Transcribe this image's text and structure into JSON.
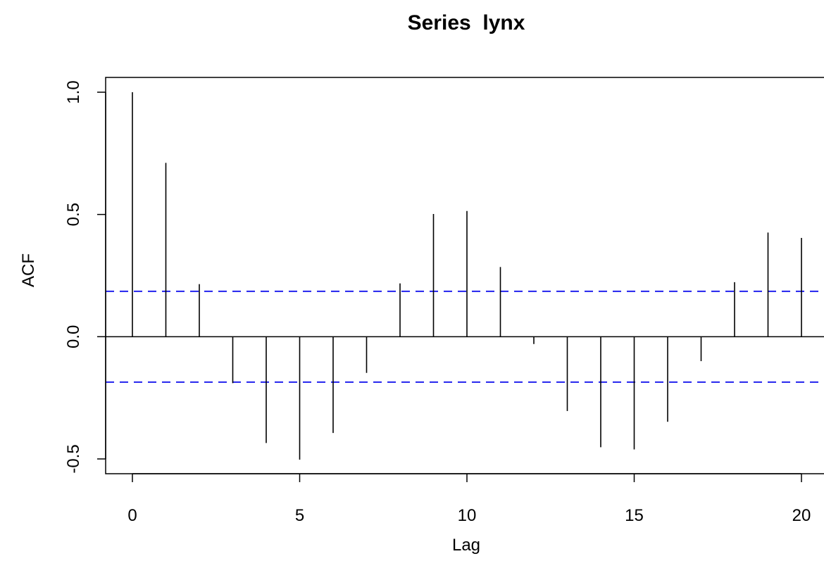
{
  "chart_data": {
    "type": "bar",
    "title": "Series  lynx",
    "xlabel": "Lag",
    "ylabel": "ACF",
    "xlim": [
      -0.8,
      20.8
    ],
    "ylim": [
      -0.5,
      1.0
    ],
    "x_ticks": [
      0,
      5,
      10,
      15,
      20
    ],
    "x_tick_labels": [
      "0",
      "5",
      "10",
      "15",
      "20"
    ],
    "y_ticks": [
      -0.5,
      0.0,
      0.5,
      1.0
    ],
    "y_tick_labels": [
      "-0.5",
      "0.0",
      "0.5",
      "1.0"
    ],
    "lags": [
      0,
      1,
      2,
      3,
      4,
      5,
      6,
      7,
      8,
      9,
      10,
      11,
      12,
      13,
      14,
      15,
      16,
      17,
      18,
      19,
      20
    ],
    "acf": [
      1.0,
      0.711,
      0.215,
      -0.19,
      -0.435,
      -0.503,
      -0.394,
      -0.148,
      0.218,
      0.502,
      0.514,
      0.285,
      -0.03,
      -0.304,
      -0.452,
      -0.461,
      -0.348,
      -0.1,
      0.223,
      0.426,
      0.404
    ],
    "confidence_bound": 0.1857,
    "colors": {
      "bars": "#000000",
      "confidence_lines": "#2222ee",
      "zero_line": "#000000",
      "axes": "#000000"
    },
    "grid": false
  }
}
